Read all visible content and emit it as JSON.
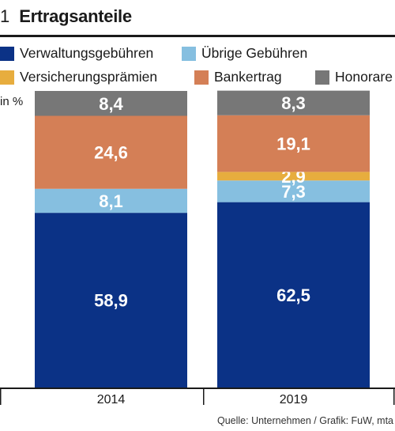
{
  "figure": {
    "number": "1",
    "title": "Ertragsanteile"
  },
  "unit_label": "in %",
  "source": "Quelle: Unternehmen  / Grafik: FuW, mta",
  "legend": [
    {
      "label": "Verwaltungsgebühren",
      "color": "#0b3286"
    },
    {
      "label": "Übrige Gebühren",
      "color": "#86bfe0"
    },
    {
      "label": "Versicherungsprämien",
      "color": "#e7ad3e"
    },
    {
      "label": "Bankertrag",
      "color": "#d47f56"
    },
    {
      "label": "Honorare",
      "color": "#777777"
    }
  ],
  "chart_data": {
    "type": "bar",
    "stacked": true,
    "categories": [
      "2014",
      "2019"
    ],
    "ylim": [
      0,
      100
    ],
    "series": [
      {
        "name": "Verwaltungsgebühren",
        "color": "#0b3286",
        "values": [
          58.9,
          62.5
        ],
        "labels": [
          "58,9",
          "62,5"
        ]
      },
      {
        "name": "Übrige Gebühren",
        "color": "#86bfe0",
        "values": [
          8.1,
          7.3
        ],
        "labels": [
          "8,1",
          "7,3"
        ]
      },
      {
        "name": "Versicherungsprämien",
        "color": "#e7ad3e",
        "values": [
          0,
          2.9
        ],
        "labels": [
          "",
          "2,9"
        ]
      },
      {
        "name": "Bankertrag",
        "color": "#d47f56",
        "values": [
          24.6,
          19.1
        ],
        "labels": [
          "24,6",
          "19,1"
        ]
      },
      {
        "name": "Honorare",
        "color": "#777777",
        "values": [
          8.4,
          8.3
        ],
        "labels": [
          "8,4",
          "8,3"
        ]
      }
    ]
  }
}
